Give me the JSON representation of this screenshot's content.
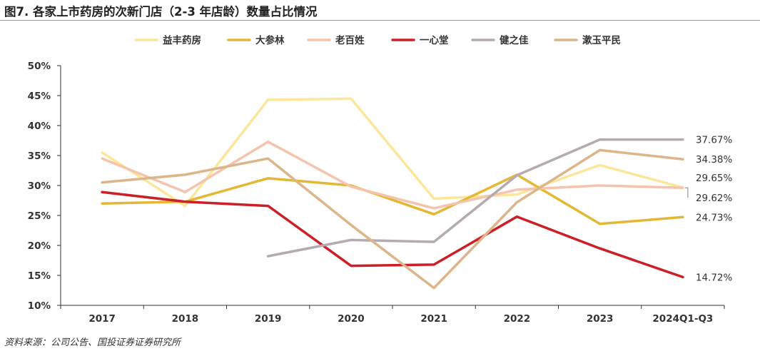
{
  "title": "图7. 各家上市药房的次新门店（2-3 年店龄）数量占比情况",
  "source": "资料来源：公司公告、国投证券证券研究所",
  "chart_data": {
    "type": "line",
    "categories": [
      "2017",
      "2018",
      "2019",
      "2020",
      "2021",
      "2022",
      "2023",
      "2024Q1-Q3"
    ],
    "ylim": [
      0.1,
      0.5
    ],
    "yticks": [
      "10%",
      "15%",
      "20%",
      "25%",
      "30%",
      "35%",
      "40%",
      "45%",
      "50%"
    ],
    "grid": false,
    "legend_position": "top",
    "series": [
      {
        "name": "益丰药房",
        "color": "#fbe699",
        "values": [
          0.355,
          0.266,
          0.443,
          0.445,
          0.278,
          0.285,
          0.334,
          0.2965
        ]
      },
      {
        "name": "大参林",
        "color": "#e4b735",
        "values": [
          0.27,
          0.273,
          0.312,
          0.3,
          0.252,
          0.318,
          0.236,
          0.2473
        ]
      },
      {
        "name": "老百姓",
        "color": "#f4c4ac",
        "values": [
          0.345,
          0.289,
          0.373,
          0.298,
          0.262,
          0.293,
          0.3,
          0.2962
        ]
      },
      {
        "name": "一心堂",
        "color": "#cc1f27",
        "values": [
          0.289,
          0.273,
          0.266,
          0.166,
          0.168,
          0.248,
          0.195,
          0.1472
        ]
      },
      {
        "name": "健之佳",
        "color": "#b3abb0",
        "values": [
          null,
          null,
          0.182,
          0.209,
          0.206,
          0.317,
          0.3767,
          0.3767
        ]
      },
      {
        "name": "漱玉平民",
        "color": "#dcb58a",
        "values": [
          0.305,
          0.318,
          0.345,
          0.234,
          0.129,
          0.272,
          0.359,
          0.3438
        ]
      }
    ],
    "end_labels": [
      {
        "series": "健之佳",
        "text": "37.67%"
      },
      {
        "series": "漱玉平民",
        "text": "34.38%"
      },
      {
        "series": "益丰药房",
        "text": "29.65%"
      },
      {
        "series": "老百姓",
        "text": "29.62%"
      },
      {
        "series": "大参林",
        "text": "24.73%"
      },
      {
        "series": "一心堂",
        "text": "14.72%"
      }
    ]
  }
}
